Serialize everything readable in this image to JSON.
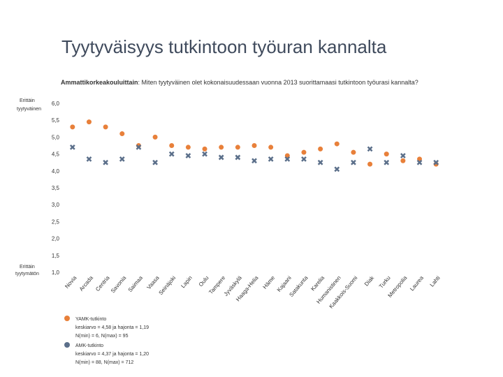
{
  "chart_data": {
    "type": "scatter",
    "title": "Tyytyväisyys tutkintoon työuran kannalta",
    "subtitle_bold": "Ammattikorkeakouluittain",
    "subtitle": ": Miten tyytyväinen olet kokonaisuudessaan vuonna 2013 suorittamaasi tutkintoon työurasi kannalta?",
    "y_top_label": [
      "Erittäin",
      "tyytyväinen"
    ],
    "y_bottom_label": [
      "Erittäin",
      "tyytymätön"
    ],
    "categories": [
      "Novia",
      "Arcada",
      "Centria",
      "Savonia",
      "Saimaa",
      "Vaasa",
      "Seinäjoki",
      "Lapin",
      "Oulu",
      "Tampere",
      "Jyväskylä",
      "Haaga-Helia",
      "Häme",
      "Kajaani",
      "Satakunta",
      "Karelia",
      "Humanistinen",
      "Kaakkois-Suomi",
      "Diak",
      "Turku",
      "Metropolia",
      "Laurea",
      "Lahti"
    ],
    "series": [
      {
        "name": "YAMK-tutkinto",
        "color": "#e8803a",
        "legend_lines": [
          "keskiarvo = 4,58 ja hajonta = 1,19",
          "N(min) = 6,  N(max) = 95"
        ],
        "values": [
          5.3,
          5.45,
          5.3,
          5.1,
          4.75,
          5.0,
          4.75,
          4.7,
          4.65,
          4.7,
          4.7,
          4.75,
          4.7,
          4.45,
          4.55,
          4.65,
          4.8,
          4.55,
          4.2,
          4.5,
          4.3,
          4.35,
          4.2
        ]
      },
      {
        "name": "AMK-tutkinto",
        "color": "#5b6f8a",
        "legend_lines": [
          "keskiarvo = 4,37 ja hajonta = 1,20",
          "N(min) = 88,  N(max) = 712"
        ],
        "values": [
          4.7,
          4.35,
          4.25,
          4.35,
          4.7,
          4.25,
          4.5,
          4.45,
          4.5,
          4.4,
          4.4,
          4.3,
          4.35,
          4.35,
          4.35,
          4.25,
          4.05,
          4.25,
          4.65,
          4.25,
          4.45,
          4.25,
          4.25
        ]
      }
    ],
    "ylim": [
      1.0,
      6.0
    ],
    "yticks": [
      {
        "value": 1.0,
        "label": "1,0"
      },
      {
        "value": 1.5,
        "label": "1,5"
      },
      {
        "value": 2.0,
        "label": "2,0"
      },
      {
        "value": 2.5,
        "label": "2,5"
      },
      {
        "value": 3.0,
        "label": "3,0"
      },
      {
        "value": 3.5,
        "label": "3,5"
      },
      {
        "value": 4.0,
        "label": "4,0"
      },
      {
        "value": 4.5,
        "label": "4,5"
      },
      {
        "value": 5.0,
        "label": "5,0"
      },
      {
        "value": 5.5,
        "label": "5,5"
      },
      {
        "value": 6.0,
        "label": "6,0"
      }
    ]
  }
}
